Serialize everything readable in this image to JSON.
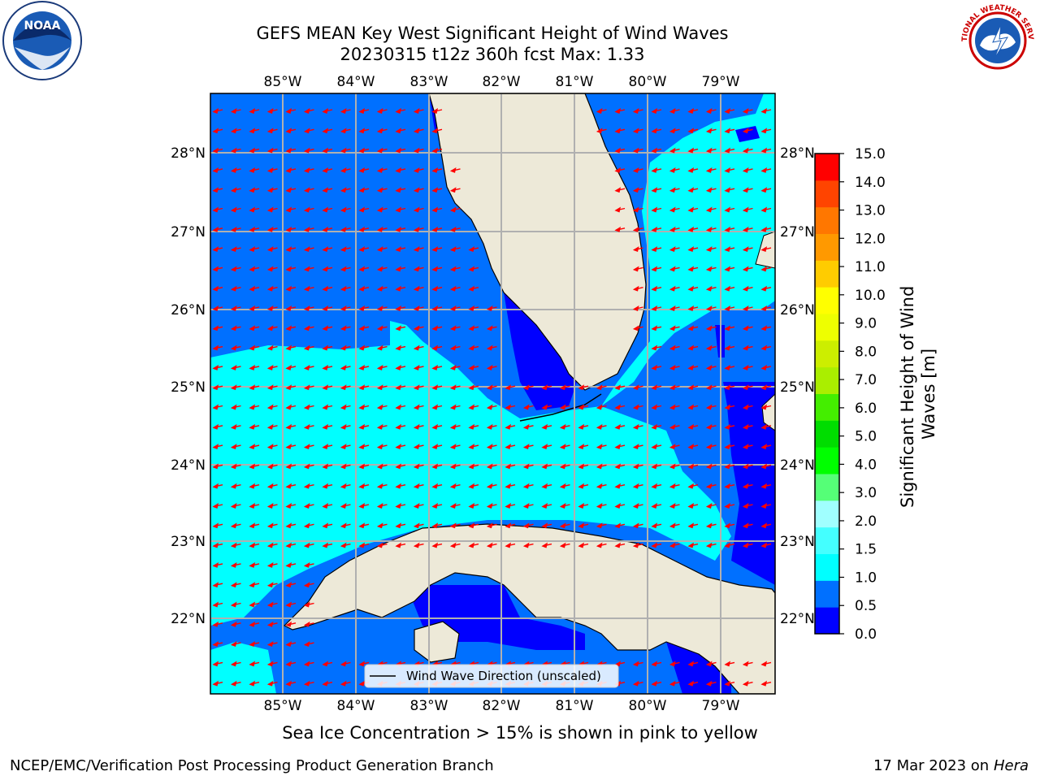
{
  "title": {
    "line1": "GEFS MEAN Key West Significant Height of Wind Waves",
    "line2": "20230315 t12z 360h fcst   Max: 1.33"
  },
  "map": {
    "lon_labels": [
      "85°W",
      "84°W",
      "83°W",
      "82°W",
      "81°W",
      "80°W",
      "79°W"
    ],
    "lat_labels": [
      "28°N",
      "27°N",
      "26°N",
      "25°N",
      "24°N",
      "23°N",
      "22°N"
    ],
    "legend_label": "Wind Wave Direction (unscaled)",
    "colors": {
      "land": "#ede9d8",
      "coast": "#000000",
      "grid": "#b0b0b0",
      "arrow": "#ff0000"
    }
  },
  "colorbar": {
    "label": "Significant Height of Wind Waves [m]",
    "ticks": [
      "0.0",
      "0.5",
      "1.0",
      "1.5",
      "2.0",
      "3.0",
      "4.0",
      "5.0",
      "6.0",
      "7.0",
      "8.0",
      "9.0",
      "10.0",
      "11.0",
      "12.0",
      "13.0",
      "14.0",
      "15.0"
    ],
    "colors": [
      "#0000ff",
      "#0070ff",
      "#00ffff",
      "#44ffff",
      "#a0ffff",
      "#55ff77",
      "#00ff00",
      "#00dd00",
      "#44ee00",
      "#aaee00",
      "#ccee00",
      "#eeff00",
      "#ffff00",
      "#ffcc00",
      "#ff9900",
      "#ff7700",
      "#ff4400",
      "#ff0000"
    ]
  },
  "logos": {
    "noaa_text": "NOAA",
    "nws_text": "NATIONAL WEATHER SERVICE"
  },
  "footer": {
    "note": "Sea Ice Concentration > 15% is shown in pink to yellow",
    "left": "NCEP/EMC/Verification Post Processing Product Generation Branch",
    "date": "17 Mar 2023 on",
    "host": "Hera"
  }
}
